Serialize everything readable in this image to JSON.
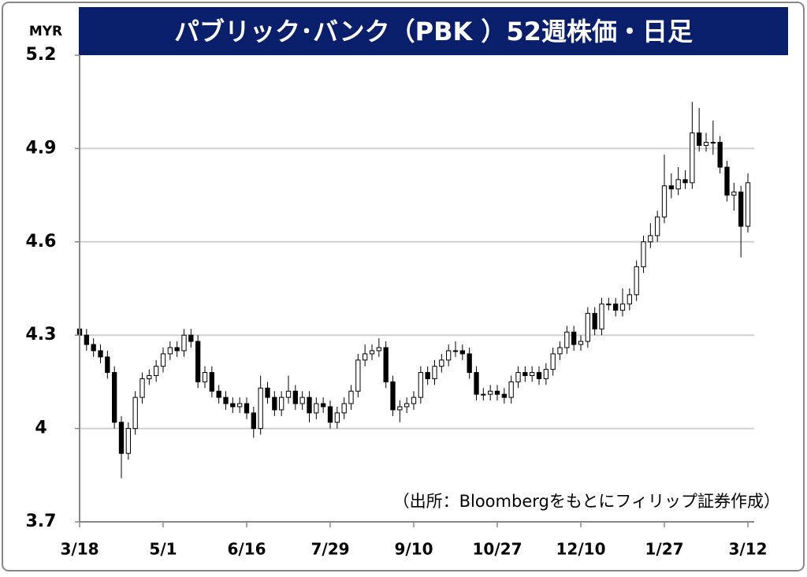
{
  "chart_data": {
    "type": "candlestick",
    "title": "パブリック･バンク（PBK ）52週株価・日足",
    "y_unit": "MYR",
    "annotation": "（出所：Bloombergをもとにフィリップ証券作成）",
    "categories": [
      "3/18",
      null,
      null,
      null,
      null,
      null,
      null,
      null,
      null,
      null,
      null,
      null,
      "5/1",
      null,
      null,
      null,
      null,
      null,
      null,
      null,
      null,
      null,
      null,
      null,
      "6/16",
      null,
      null,
      null,
      null,
      null,
      null,
      null,
      null,
      null,
      null,
      null,
      "7/29",
      null,
      null,
      null,
      null,
      null,
      null,
      null,
      null,
      null,
      null,
      null,
      "9/10",
      null,
      null,
      null,
      null,
      null,
      null,
      null,
      null,
      null,
      null,
      null,
      "10/27",
      null,
      null,
      null,
      null,
      null,
      null,
      null,
      null,
      null,
      null,
      null,
      "12/10",
      null,
      null,
      null,
      null,
      null,
      null,
      null,
      null,
      null,
      null,
      null,
      "1/27",
      null,
      null,
      null,
      null,
      null,
      null,
      null,
      null,
      null,
      null,
      null,
      "3/12"
    ],
    "open": [
      4.32,
      4.3,
      4.27,
      4.25,
      4.23,
      4.18,
      4.02,
      3.92,
      4.0,
      4.1,
      4.16,
      4.17,
      4.2,
      4.24,
      4.26,
      4.25,
      4.3,
      4.28,
      4.15,
      4.18,
      4.12,
      4.1,
      4.08,
      4.07,
      4.08,
      4.05,
      4.0,
      4.13,
      4.1,
      4.06,
      4.1,
      4.12,
      4.08,
      4.1,
      4.05,
      4.08,
      4.07,
      4.02,
      4.05,
      4.08,
      4.12,
      4.22,
      4.24,
      4.25,
      4.26,
      4.15,
      4.06,
      4.07,
      4.08,
      4.1,
      4.18,
      4.16,
      4.2,
      4.22,
      4.25,
      4.25,
      4.24,
      4.18,
      4.11,
      4.11,
      4.12,
      4.11,
      4.1,
      4.15,
      4.18,
      4.17,
      4.18,
      4.16,
      4.19,
      4.24,
      4.26,
      4.31,
      4.27,
      4.28,
      4.37,
      4.32,
      4.4,
      4.4,
      4.38,
      4.4,
      4.43,
      4.52,
      4.6,
      4.62,
      4.68,
      4.78,
      4.77,
      4.8,
      4.79,
      4.95,
      4.91,
      4.92,
      4.92,
      4.84,
      4.75,
      4.76,
      4.65
    ],
    "high": [
      4.34,
      4.32,
      4.29,
      4.27,
      4.25,
      4.2,
      4.04,
      4.02,
      4.12,
      4.18,
      4.19,
      4.22,
      4.26,
      4.28,
      4.28,
      4.32,
      4.32,
      4.3,
      4.2,
      4.2,
      4.14,
      4.12,
      4.1,
      4.1,
      4.1,
      4.07,
      4.17,
      4.15,
      4.12,
      4.12,
      4.17,
      4.14,
      4.12,
      4.12,
      4.1,
      4.1,
      4.09,
      4.07,
      4.1,
      4.14,
      4.24,
      4.27,
      4.27,
      4.29,
      4.28,
      4.17,
      4.09,
      4.1,
      4.12,
      4.2,
      4.2,
      4.22,
      4.24,
      4.27,
      4.28,
      4.27,
      4.26,
      4.2,
      4.13,
      4.14,
      4.14,
      4.13,
      4.17,
      4.2,
      4.2,
      4.2,
      4.2,
      4.21,
      4.26,
      4.28,
      4.33,
      4.33,
      4.3,
      4.39,
      4.39,
      4.42,
      4.42,
      4.42,
      4.45,
      4.45,
      4.54,
      4.62,
      4.66,
      4.7,
      4.88,
      4.82,
      4.84,
      4.83,
      5.05,
      5.03,
      4.95,
      4.99,
      4.94,
      4.86,
      4.79,
      4.78,
      4.82
    ],
    "low": [
      4.28,
      4.25,
      4.23,
      4.21,
      4.16,
      4.0,
      3.84,
      3.9,
      3.98,
      4.08,
      4.14,
      4.15,
      4.18,
      4.22,
      4.23,
      4.23,
      4.26,
      4.13,
      4.13,
      4.1,
      4.08,
      4.06,
      4.05,
      4.05,
      4.03,
      3.97,
      3.98,
      4.08,
      4.04,
      4.04,
      4.08,
      4.06,
      4.06,
      4.02,
      4.03,
      4.05,
      4.0,
      4.0,
      4.03,
      4.06,
      4.1,
      4.2,
      4.22,
      4.23,
      4.13,
      4.04,
      4.02,
      4.05,
      4.06,
      4.08,
      4.14,
      4.14,
      4.18,
      4.2,
      4.23,
      4.22,
      4.16,
      4.09,
      4.09,
      4.09,
      4.09,
      4.08,
      4.08,
      4.13,
      4.15,
      4.15,
      4.14,
      4.14,
      4.17,
      4.22,
      4.24,
      4.25,
      4.25,
      4.26,
      4.3,
      4.3,
      4.38,
      4.36,
      4.36,
      4.38,
      4.41,
      4.5,
      4.58,
      4.6,
      4.66,
      4.74,
      4.75,
      4.77,
      4.77,
      4.89,
      4.89,
      4.88,
      4.82,
      4.73,
      4.7,
      4.55,
      4.63
    ],
    "close": [
      4.3,
      4.27,
      4.25,
      4.23,
      4.18,
      4.02,
      3.92,
      4.0,
      4.1,
      4.16,
      4.17,
      4.2,
      4.24,
      4.26,
      4.25,
      4.3,
      4.28,
      4.15,
      4.18,
      4.12,
      4.1,
      4.08,
      4.07,
      4.08,
      4.05,
      4.0,
      4.13,
      4.1,
      4.06,
      4.1,
      4.12,
      4.08,
      4.1,
      4.05,
      4.08,
      4.07,
      4.02,
      4.05,
      4.08,
      4.12,
      4.22,
      4.24,
      4.25,
      4.26,
      4.15,
      4.06,
      4.07,
      4.08,
      4.1,
      4.18,
      4.16,
      4.2,
      4.22,
      4.25,
      4.25,
      4.24,
      4.18,
      4.11,
      4.11,
      4.12,
      4.11,
      4.1,
      4.15,
      4.18,
      4.17,
      4.18,
      4.16,
      4.19,
      4.24,
      4.26,
      4.31,
      4.27,
      4.28,
      4.37,
      4.32,
      4.4,
      4.4,
      4.38,
      4.4,
      4.43,
      4.52,
      4.6,
      4.62,
      4.68,
      4.78,
      4.77,
      4.8,
      4.79,
      4.95,
      4.91,
      4.92,
      4.92,
      4.84,
      4.75,
      4.76,
      4.65,
      4.79
    ],
    "up_color": "#ffffff",
    "down_color": "#000000",
    "ylim": [
      3.7,
      5.2
    ],
    "yticks": [
      3.7,
      4.0,
      4.3,
      4.6,
      4.9,
      5.2
    ],
    "grid": true
  }
}
